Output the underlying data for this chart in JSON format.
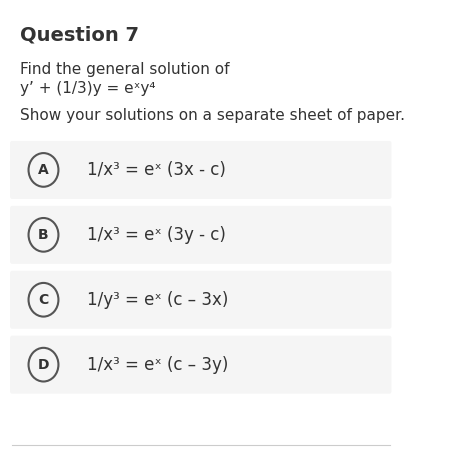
{
  "title": "Question 7",
  "intro_line1": "Find the general solution of",
  "intro_line2": "y’ + (1/3)y = eˣy⁴",
  "instruction": "Show your solutions on a separate sheet of paper.",
  "options": [
    {
      "label": "A",
      "text": "1/x³ = eˣ (3x - c)"
    },
    {
      "label": "B",
      "text": "1/x³ = eˣ (3y - c)"
    },
    {
      "label": "C",
      "text": "1/y³ = eˣ (c – 3x)"
    },
    {
      "label": "D",
      "text": "1/x³ = eˣ (c – 3y)"
    }
  ],
  "bg_color": "#ffffff",
  "option_bg_color": "#f5f5f5",
  "text_color": "#333333",
  "title_fontsize": 14,
  "body_fontsize": 11,
  "option_fontsize": 12,
  "circle_color": "#555555",
  "bottom_line_color": "#cccccc"
}
